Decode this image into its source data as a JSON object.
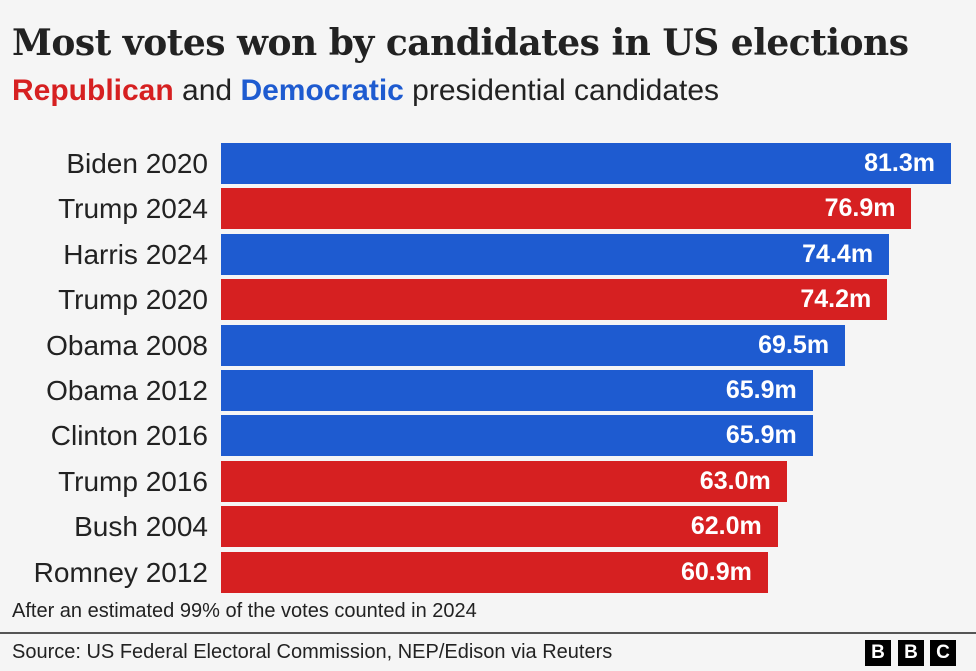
{
  "chart_data": {
    "type": "bar",
    "orientation": "horizontal",
    "title": "Most votes won by candidates in US elections",
    "subtitle": {
      "rep": "Republican",
      "and": " and ",
      "dem": "Democratic",
      "rest": " presidential candidates"
    },
    "categories": [
      "Biden 2020",
      "Trump 2024",
      "Harris 2024",
      "Trump 2020",
      "Obama 2008",
      "Obama 2012",
      "Clinton 2016",
      "Trump 2016",
      "Bush 2004",
      "Romney 2012"
    ],
    "values": [
      81.3,
      76.9,
      74.4,
      74.2,
      69.5,
      65.9,
      65.9,
      63.0,
      62.0,
      60.9
    ],
    "value_labels": [
      "81.3m",
      "76.9m",
      "74.4m",
      "74.2m",
      "69.5m",
      "65.9m",
      "65.9m",
      "63.0m",
      "62.0m",
      "60.9m"
    ],
    "party": [
      "dem",
      "rep",
      "dem",
      "rep",
      "dem",
      "dem",
      "dem",
      "rep",
      "rep",
      "rep"
    ],
    "unit": "million votes",
    "xlim": [
      0,
      81.3
    ],
    "grid": false,
    "colors": {
      "rep": "#d62021",
      "dem": "#1e5bd0"
    }
  },
  "note": "After an estimated 99% of the votes counted in 2024",
  "source": "Source: US Federal Electoral Commission, NEP/Edison via Reuters",
  "logo": [
    "B",
    "B",
    "C"
  ]
}
